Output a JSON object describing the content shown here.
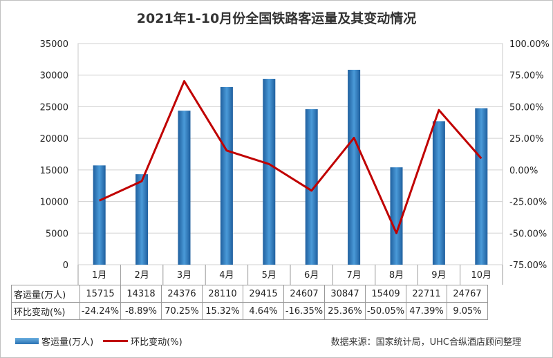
{
  "title": "2021年1-10月份全国铁路客运量及其变动情况",
  "chart_data": {
    "type": "bar+line",
    "categories": [
      "1月",
      "2月",
      "3月",
      "4月",
      "5月",
      "6月",
      "7月",
      "8月",
      "9月",
      "10月"
    ],
    "series": [
      {
        "name": "客运量(万人)",
        "type": "bar",
        "axis": "left",
        "color": "#2f7fc4",
        "values": [
          15715,
          14318,
          24376,
          28110,
          29415,
          24607,
          30847,
          15409,
          22711,
          24767
        ]
      },
      {
        "name": "环比变动(%)",
        "type": "line",
        "axis": "right",
        "color": "#c00000",
        "values": [
          -24.24,
          -8.89,
          70.25,
          15.32,
          4.64,
          -16.35,
          25.36,
          -50.05,
          47.39,
          9.05
        ]
      }
    ],
    "y_left": {
      "min": 0,
      "max": 35000,
      "ticks": [
        "0",
        "5000",
        "10000",
        "15000",
        "20000",
        "25000",
        "30000",
        "35000"
      ]
    },
    "y_right": {
      "min": -75,
      "max": 100,
      "ticks": [
        "-75.00%",
        "-50.00%",
        "-25.00%",
        "0.00%",
        "25.00%",
        "50.00%",
        "75.00%",
        "100.00%"
      ]
    },
    "grid": "horizontal",
    "legend": "bottom-left"
  },
  "table": {
    "row1_label": "客运量(万人)",
    "row1_values": [
      "15715",
      "14318",
      "24376",
      "28110",
      "29415",
      "24607",
      "30847",
      "15409",
      "22711",
      "24767"
    ],
    "row2_label": "环比变动(%)",
    "row2_values": [
      "-24.24%",
      "-8.89%",
      "70.25%",
      "15.32%",
      "4.64%",
      "-16.35%",
      "25.36%",
      "-50.05%",
      "47.39%",
      "9.05%"
    ]
  },
  "legend": {
    "bar_label": "客运量(万人)",
    "line_label": "环比变动(%)"
  },
  "source": "数据来源：国家统计局，UHC合纵酒店顾问整理"
}
